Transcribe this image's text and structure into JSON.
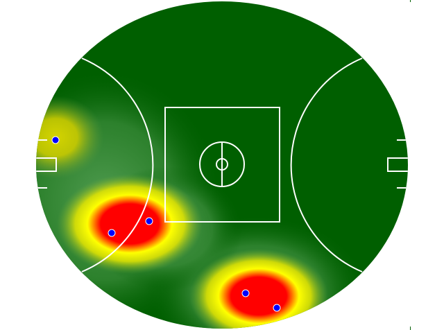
{
  "field": {
    "type": "AFL oval heatmap",
    "colors": {
      "grass": "#005f00",
      "halo": "#4a9a4a",
      "heat_mid": "#ffff00",
      "heat_high": "#ff0000",
      "markings": "#ffffff",
      "point": "#0000ff"
    }
  }
}
